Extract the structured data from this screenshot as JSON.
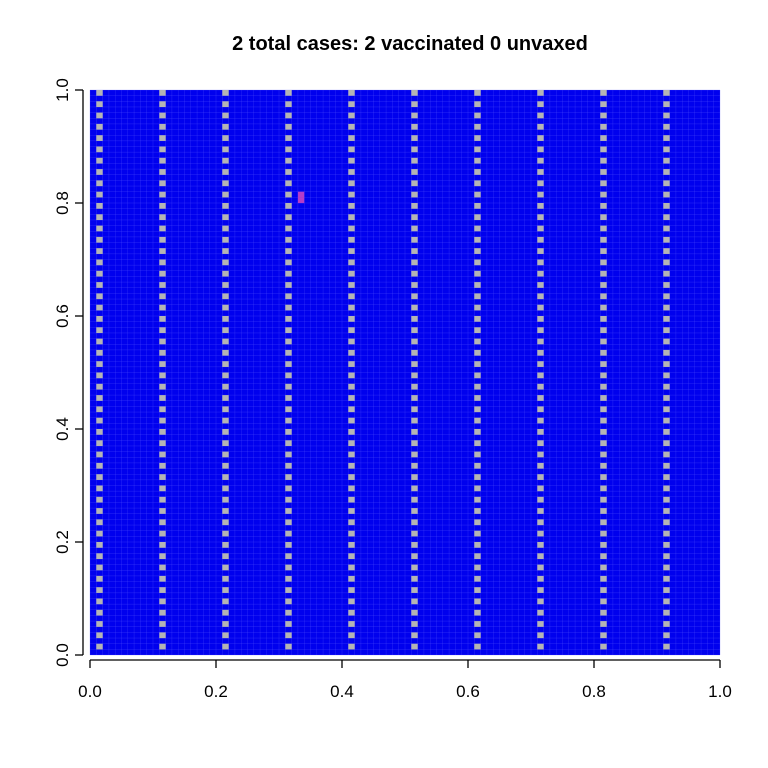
{
  "chart_data": {
    "type": "heatmap",
    "title": "2 total cases: 2 vaccinated 0 unvaxed",
    "xlabel": "",
    "ylabel": "",
    "xlim": [
      0,
      1
    ],
    "ylim": [
      0,
      1
    ],
    "x_ticks": [
      "0.0",
      "0.2",
      "0.4",
      "0.6",
      "0.8",
      "1.0"
    ],
    "y_ticks": [
      "0.0",
      "0.2",
      "0.4",
      "0.6",
      "0.8",
      "1.0"
    ],
    "grid_size": 100,
    "colors": {
      "vaccinated": "#0000ee",
      "unvaccinated": "#b4b4b4",
      "case": "#b43cc8",
      "cell_border": "#5a5aff"
    },
    "unvaccinated_column_period": 10,
    "unvaccinated_columns_start": 1,
    "cases": [
      {
        "x": 0.335,
        "y": 0.805,
        "status": "vaccinated"
      },
      {
        "x": 0.335,
        "y": 0.815,
        "status": "vaccinated"
      }
    ]
  }
}
